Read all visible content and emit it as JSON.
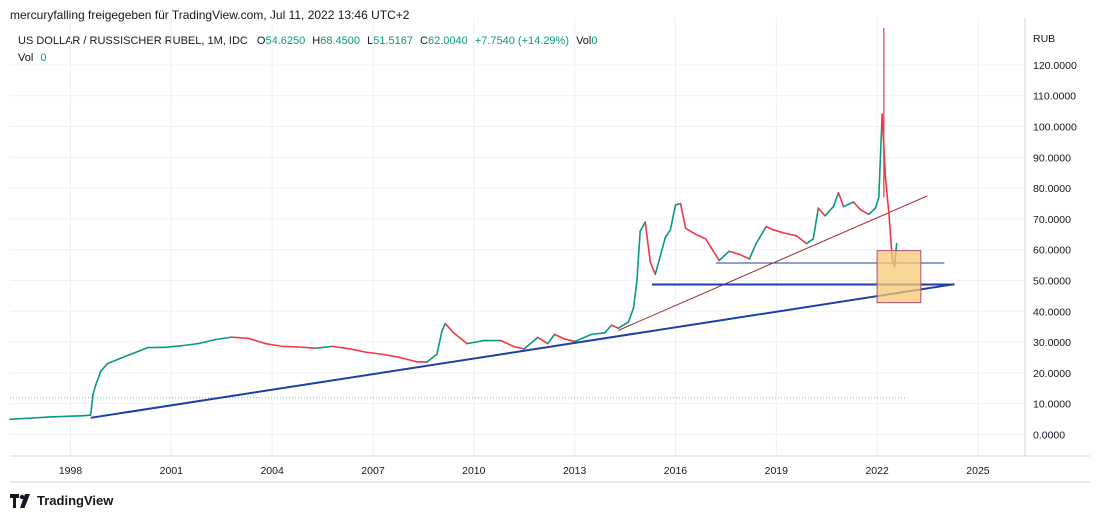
{
  "header": {
    "author_line": "mercuryfalling freigegeben für TradingView.com, Jul 11, 2022 13:46 UTC+2"
  },
  "legend": {
    "symbol": "US DOLLAR / RUSSISCHER RUBEL, 1M, IDC",
    "o_label": "O",
    "o": "54.6250",
    "h_label": "H",
    "h": "68.4500",
    "l_label": "L",
    "l": "51.5167",
    "c_label": "C",
    "c": "62.0040",
    "change": "+7.7540 (+14.29%)",
    "vol_label": "Vol",
    "vol": "0",
    "vol_row_label": "Vol",
    "vol_row_value": "0"
  },
  "footer": {
    "brand": "TradingView"
  },
  "colors": {
    "up": "#089981",
    "down": "#f23645",
    "trend_blue": "#1e3fa8",
    "trend_red": "#9c2a2a",
    "box_fill": "#f7c873",
    "box_stroke": "#b24f7a",
    "grid": "#eef0f3"
  },
  "chart_data": {
    "type": "line",
    "currency_label": "RUB",
    "y_ticks": [
      "0.0000",
      "10.0000",
      "20.0000",
      "30.0000",
      "40.0000",
      "50.0000",
      "60.0000",
      "70.0000",
      "80.0000",
      "90.0000",
      "100.0000",
      "110.0000",
      "120.0000"
    ],
    "ylim": [
      -7,
      132
    ],
    "x_ticks": [
      1998,
      2001,
      2004,
      2007,
      2010,
      2013,
      2016,
      2019,
      2022,
      2025
    ],
    "xlim": [
      1996.2,
      2026.4
    ],
    "series": [
      {
        "points": [
          [
            1996.2,
            4.9
          ],
          [
            1996.8,
            5.3
          ],
          [
            1997.4,
            5.7
          ],
          [
            1997.9,
            5.9
          ],
          [
            1998.4,
            6.1
          ],
          [
            1998.6,
            6.3
          ],
          [
            1998.67,
            13.0
          ],
          [
            1998.75,
            16.0
          ],
          [
            1998.9,
            20.5
          ],
          [
            1999.1,
            23.0
          ],
          [
            1999.5,
            24.8
          ],
          [
            1999.9,
            26.5
          ],
          [
            2000.3,
            28.2
          ],
          [
            2000.8,
            28.3
          ],
          [
            2001.3,
            28.8
          ],
          [
            2001.8,
            29.5
          ],
          [
            2002.3,
            30.8
          ],
          [
            2002.8,
            31.6
          ],
          [
            2003.3,
            31.2
          ],
          [
            2003.8,
            29.5
          ],
          [
            2004.3,
            28.6
          ],
          [
            2004.8,
            28.4
          ],
          [
            2005.3,
            28.0
          ],
          [
            2005.8,
            28.6
          ],
          [
            2006.3,
            27.8
          ],
          [
            2006.8,
            26.7
          ],
          [
            2007.3,
            26.0
          ],
          [
            2007.8,
            25.0
          ],
          [
            2008.3,
            23.6
          ],
          [
            2008.6,
            23.5
          ],
          [
            2008.9,
            26.0
          ],
          [
            2009.05,
            33.5
          ],
          [
            2009.15,
            36.0
          ],
          [
            2009.4,
            33.0
          ],
          [
            2009.8,
            29.5
          ],
          [
            2010.3,
            30.5
          ],
          [
            2010.8,
            30.5
          ],
          [
            2011.2,
            28.5
          ],
          [
            2011.5,
            27.8
          ],
          [
            2011.9,
            31.5
          ],
          [
            2012.2,
            29.5
          ],
          [
            2012.4,
            32.5
          ],
          [
            2012.7,
            31.0
          ],
          [
            2013.0,
            30.2
          ],
          [
            2013.5,
            32.5
          ],
          [
            2013.9,
            33.0
          ],
          [
            2014.1,
            35.5
          ],
          [
            2014.3,
            34.5
          ],
          [
            2014.6,
            36.5
          ],
          [
            2014.75,
            41.0
          ],
          [
            2014.85,
            49.5
          ],
          [
            2014.95,
            66.0
          ],
          [
            2015.1,
            69.0
          ],
          [
            2015.25,
            56.0
          ],
          [
            2015.4,
            52.0
          ],
          [
            2015.55,
            58.0
          ],
          [
            2015.7,
            64.0
          ],
          [
            2015.85,
            66.5
          ],
          [
            2016.0,
            74.5
          ],
          [
            2016.15,
            75.0
          ],
          [
            2016.3,
            67.0
          ],
          [
            2016.6,
            65.0
          ],
          [
            2016.9,
            63.5
          ],
          [
            2017.1,
            60.0
          ],
          [
            2017.3,
            56.5
          ],
          [
            2017.6,
            59.5
          ],
          [
            2017.9,
            58.5
          ],
          [
            2018.2,
            57.0
          ],
          [
            2018.4,
            62.0
          ],
          [
            2018.7,
            67.5
          ],
          [
            2018.9,
            66.5
          ],
          [
            2019.2,
            65.5
          ],
          [
            2019.6,
            64.5
          ],
          [
            2019.9,
            62.0
          ],
          [
            2020.1,
            63.5
          ],
          [
            2020.25,
            73.5
          ],
          [
            2020.45,
            71.0
          ],
          [
            2020.7,
            74.0
          ],
          [
            2020.85,
            78.5
          ],
          [
            2021.0,
            74.0
          ],
          [
            2021.3,
            75.5
          ],
          [
            2021.5,
            73.0
          ],
          [
            2021.75,
            71.5
          ],
          [
            2021.95,
            73.5
          ],
          [
            2022.05,
            77.0
          ],
          [
            2022.15,
            104.0
          ],
          [
            2022.25,
            83.0
          ],
          [
            2022.35,
            72.0
          ],
          [
            2022.45,
            57.0
          ],
          [
            2022.52,
            54.6
          ],
          [
            2022.58,
            62.0
          ]
        ]
      }
    ],
    "spike": {
      "x": 2022.2,
      "low": 77.0,
      "high": 132.0
    },
    "trendlines": [
      {
        "color": "blue",
        "points": [
          [
            1998.6,
            5.4
          ],
          [
            2024.3,
            48.8
          ]
        ]
      },
      {
        "color": "red",
        "points": [
          [
            2014.3,
            33.8
          ],
          [
            2023.5,
            77.5
          ]
        ]
      },
      {
        "color": "blue",
        "points": [
          [
            2015.3,
            48.7
          ],
          [
            2024.3,
            48.7
          ]
        ]
      },
      {
        "color": "blue",
        "points": [
          [
            2017.2,
            55.7
          ],
          [
            2024.0,
            55.7
          ]
        ]
      }
    ],
    "dotted_level": 11.9,
    "box": {
      "x0": 2022.0,
      "x1": 2023.3,
      "y0": 42.8,
      "y1": 59.7
    }
  }
}
